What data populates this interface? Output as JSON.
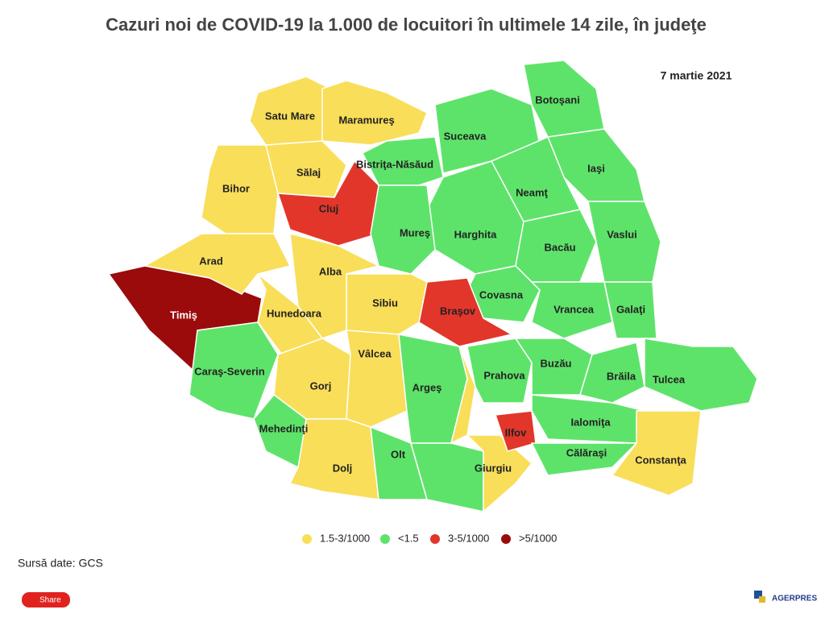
{
  "title": "Cazuri noi de COVID-19 la 1.000 de locuitori în ultimele 14 zile, în judeţe",
  "date": "7 martie 2021",
  "legend": [
    {
      "label": "1.5-3/1000",
      "color": "#f9de59"
    },
    {
      "label": "<1.5",
      "color": "#5ee36a"
    },
    {
      "label": "3-5/1000",
      "color": "#e2362b"
    },
    {
      "label": ">5/1000",
      "color": "#9b0b0b"
    }
  ],
  "counties": [
    {
      "name": "Satu Mare",
      "class": 0
    },
    {
      "name": "Maramureş",
      "class": 0
    },
    {
      "name": "Bihor",
      "class": 0
    },
    {
      "name": "Sălaj",
      "class": 0
    },
    {
      "name": "Cluj",
      "class": 2
    },
    {
      "name": "Bistriţa-Năsăud",
      "class": 1
    },
    {
      "name": "Suceava",
      "class": 1
    },
    {
      "name": "Botoşani",
      "class": 1
    },
    {
      "name": "Iaşi",
      "class": 1
    },
    {
      "name": "Neamţ",
      "class": 1
    },
    {
      "name": "Harghita",
      "class": 1
    },
    {
      "name": "Mureş",
      "class": 1
    },
    {
      "name": "Bacău",
      "class": 1
    },
    {
      "name": "Vaslui",
      "class": 1
    },
    {
      "name": "Covasna",
      "class": 1
    },
    {
      "name": "Vrancea",
      "class": 1
    },
    {
      "name": "Galaţi",
      "class": 1
    },
    {
      "name": "Braşov",
      "class": 2
    },
    {
      "name": "Sibiu",
      "class": 0
    },
    {
      "name": "Alba",
      "class": 0
    },
    {
      "name": "Hunedoara",
      "class": 0
    },
    {
      "name": "Timiş",
      "class": 3
    },
    {
      "name": "Arad",
      "class": 0
    },
    {
      "name": "Caraş-Severin",
      "class": 1
    },
    {
      "name": "Gorj",
      "class": 0
    },
    {
      "name": "Vâlcea",
      "class": 0
    },
    {
      "name": "Argeş",
      "class": 1
    },
    {
      "name": "Mehedinţi",
      "class": 1
    },
    {
      "name": "Dolj",
      "class": 0
    },
    {
      "name": "Olt",
      "class": 1
    },
    {
      "name": null,
      "class": 1
    },
    {
      "name": "Giurgiu",
      "class": 0
    },
    {
      "name": null,
      "class": 0
    },
    {
      "name": "Prahova",
      "class": 1
    },
    {
      "name": "Buzău",
      "class": 1
    },
    {
      "name": "Brăila",
      "class": 1
    },
    {
      "name": "Tulcea",
      "class": 1
    },
    {
      "name": "Ialomiţa",
      "class": 1
    },
    {
      "name": "Ilfov",
      "class": 2
    },
    {
      "name": "Călăraşi",
      "class": 1
    },
    {
      "name": "Constanţa",
      "class": 0
    }
  ],
  "source": "Sursă date: GCS",
  "share": "Share",
  "logo": "AGERPRES"
}
